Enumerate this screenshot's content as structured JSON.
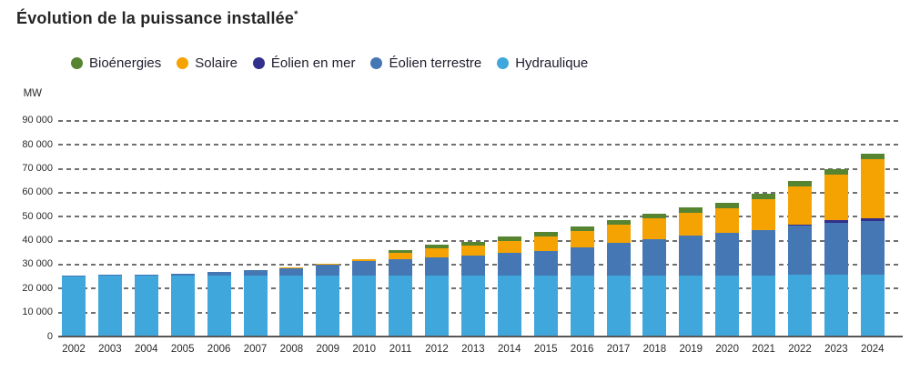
{
  "title": {
    "text": "Évolution de la puissance installée",
    "asterisk": "*"
  },
  "y_axis": {
    "unit": "MW",
    "tick_labels": [
      "0",
      "10 000",
      "20 000",
      "30 000",
      "40 000",
      "50 000",
      "60 000",
      "70 000",
      "80 000",
      "90 000"
    ]
  },
  "legend": [
    {
      "label": "Bioénergies",
      "color": "#568431"
    },
    {
      "label": "Solaire",
      "color": "#F5A303"
    },
    {
      "label": "Éolien en mer",
      "color": "#31308C"
    },
    {
      "label": "Éolien terrestre",
      "color": "#4477B3"
    },
    {
      "label": "Hydraulique",
      "color": "#3FA7DC"
    }
  ],
  "colors": {
    "bioenergies": "#568431",
    "solaire": "#F5A303",
    "eolien_en_mer": "#31308C",
    "eolien_terrestre": "#4477B3",
    "hydraulique": "#3FA7DC",
    "gridline": "#6F6F6F",
    "axis_line": "#57575A",
    "text": "#252525"
  },
  "chart_data": {
    "type": "bar",
    "stacked": true,
    "title": "Évolution de la puissance installée*",
    "ylabel": "MW",
    "ylim": [
      0,
      90000
    ],
    "ytick_step": 10000,
    "grid": "horizontal dashed",
    "legend_position": "top",
    "categories": [
      2002,
      2003,
      2004,
      2005,
      2006,
      2007,
      2008,
      2009,
      2010,
      2011,
      2012,
      2013,
      2014,
      2015,
      2016,
      2017,
      2018,
      2019,
      2020,
      2021,
      2022,
      2023,
      2024
    ],
    "series": [
      {
        "name": "Hydraulique",
        "color": "#3FA7DC",
        "values": [
          25400,
          25410,
          25440,
          25450,
          25460,
          25460,
          25460,
          25470,
          25400,
          25470,
          25520,
          25530,
          25410,
          25420,
          25480,
          25520,
          25510,
          25560,
          25550,
          25570,
          25700,
          25700,
          25730
        ]
      },
      {
        "name": "Éolien terrestre",
        "color": "#4477B3",
        "values": [
          150,
          260,
          390,
          760,
          1500,
          2250,
          3400,
          4570,
          5910,
          6760,
          7610,
          8160,
          9310,
          10300,
          11760,
          13500,
          15110,
          16490,
          17620,
          18780,
          20640,
          21880,
          22280
        ]
      },
      {
        "name": "Éolien en mer",
        "color": "#31308C",
        "values": [
          0,
          0,
          0,
          0,
          0,
          0,
          0,
          0,
          0,
          0,
          0,
          0,
          0,
          0,
          0,
          0,
          0,
          0,
          0,
          0,
          480,
          840,
          1480
        ]
      },
      {
        "name": "Solaire",
        "color": "#F5A303",
        "values": [
          0,
          0,
          0,
          0,
          0,
          0,
          80,
          280,
          880,
          2580,
          3730,
          4370,
          5300,
          6200,
          6770,
          7660,
          8530,
          9620,
          10390,
          13070,
          15780,
          19080,
          24360
        ]
      },
      {
        "name": "Bioénergies",
        "color": "#568431",
        "values": [
          0,
          0,
          0,
          0,
          0,
          0,
          0,
          0,
          0,
          1350,
          1400,
          1500,
          1580,
          1680,
          1920,
          1950,
          2040,
          2100,
          2170,
          2210,
          2270,
          2320,
          2330
        ]
      }
    ]
  }
}
